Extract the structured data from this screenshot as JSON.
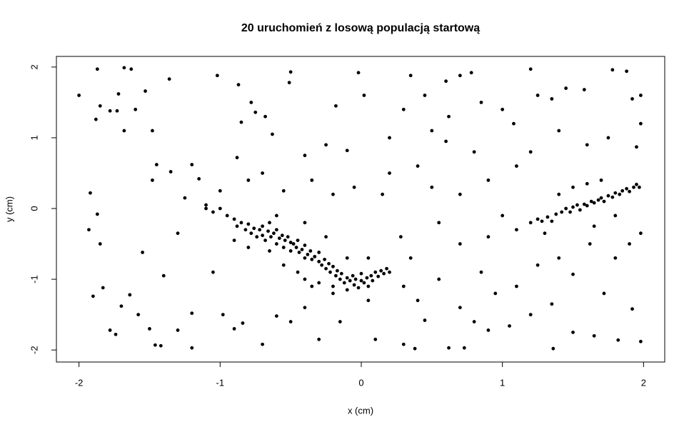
{
  "chart_data": {
    "type": "scatter",
    "title": "20 uruchomień z losową populacją startową",
    "xlabel": "x (cm)",
    "ylabel": "y (cm)",
    "color": "#000000",
    "xlim": [
      -2.16,
      2.15
    ],
    "ylim": [
      -2.17,
      2.15
    ],
    "xticks": [
      -2,
      -1,
      0,
      1,
      2
    ],
    "yticks": [
      -2,
      -1,
      0,
      1,
      2
    ],
    "x": [
      -2.0,
      -1.87,
      -1.85,
      -1.88,
      -1.78,
      -1.73,
      -1.72,
      -1.68,
      -1.63,
      -1.68,
      -1.6,
      -1.53,
      -1.48,
      -1.36,
      -1.92,
      -1.87,
      -1.93,
      -1.85,
      -1.9,
      -1.83,
      -1.78,
      -1.74,
      -1.7,
      -1.64,
      -1.58,
      -1.5,
      -1.46,
      -1.42,
      -1.3,
      -1.2,
      -1.45,
      -1.48,
      -1.35,
      -1.2,
      -1.25,
      -1.15,
      -1.3,
      -1.55,
      -1.4,
      -1.2,
      -1.02,
      -0.87,
      -0.78,
      -0.75,
      -0.68,
      -0.5,
      -0.51,
      -0.63,
      -0.85,
      -0.88,
      -0.4,
      -0.25,
      -0.18,
      -0.02,
      0.02,
      -0.1,
      -1.05,
      -0.98,
      -0.9,
      -0.84,
      -0.7,
      -0.6,
      -0.5,
      -0.4,
      -0.3,
      -0.15,
      0.05,
      0.1,
      0.3,
      0.38,
      0.45,
      0.62,
      0.73,
      0.8,
      0.9,
      1.05,
      1.2,
      1.36,
      1.5,
      1.65,
      1.82,
      1.98,
      1.92,
      1.72,
      1.5,
      1.35,
      1.1,
      0.95,
      0.85,
      0.7,
      0.55,
      0.4,
      0.35,
      0.3,
      0.28,
      0.4,
      0.3,
      0.35,
      0.45,
      0.6,
      0.7,
      0.78,
      0.62,
      0.85,
      1.0,
      1.08,
      1.2,
      1.25,
      1.35,
      1.45,
      1.58,
      1.78,
      1.88,
      1.92,
      1.98,
      1.98,
      1.95,
      1.75,
      1.6,
      1.4,
      1.2,
      1.1,
      0.9,
      0.7,
      0.5,
      0.55,
      0.7,
      0.9,
      1.0,
      1.1,
      0.8,
      0.6,
      0.5,
      0.2,
      0.15,
      0.2,
      -0.05,
      -0.2,
      -0.35,
      -0.55,
      -0.7,
      -0.8,
      -1.0,
      -1.1,
      1.98,
      1.9,
      1.8,
      1.62,
      1.4,
      1.25,
      -1.1,
      -1.05,
      -1.0,
      -0.95,
      -0.9,
      -0.88,
      -0.85,
      -0.82,
      -0.8,
      -0.78,
      -0.76,
      -0.74,
      -0.72,
      -0.7,
      -0.7,
      -0.68,
      -0.66,
      -0.65,
      -0.64,
      -0.62,
      -0.6,
      -0.6,
      -0.58,
      -0.56,
      -0.55,
      -0.54,
      -0.52,
      -0.5,
      -0.5,
      -0.48,
      -0.46,
      -0.45,
      -0.44,
      -0.42,
      -0.4,
      -0.4,
      -0.38,
      -0.36,
      -0.35,
      -0.33,
      -0.3,
      -0.3,
      -0.28,
      -0.26,
      -0.25,
      -0.23,
      -0.22,
      -0.2,
      -0.2,
      -0.18,
      -0.17,
      -0.15,
      -0.14,
      -0.12,
      -0.1,
      -0.1,
      -0.08,
      -0.06,
      -0.05,
      -0.04,
      -0.02,
      0.0,
      0.0,
      0.02,
      0.04,
      0.05,
      0.07,
      0.08,
      0.1,
      0.12,
      0.14,
      0.16,
      0.18,
      0.2,
      -0.3,
      -0.35,
      -0.45,
      -0.55,
      -0.65,
      -0.8,
      -0.9,
      -0.6,
      -0.4,
      -0.25,
      -0.1,
      0.05,
      -0.2,
      -0.4,
      1.2,
      1.25,
      1.28,
      1.32,
      1.35,
      1.38,
      1.42,
      1.45,
      1.48,
      1.5,
      1.53,
      1.55,
      1.58,
      1.6,
      1.63,
      1.65,
      1.68,
      1.7,
      1.72,
      1.75,
      1.78,
      1.8,
      1.83,
      1.85,
      1.88,
      1.9,
      1.93,
      1.95,
      1.97,
      1.6,
      1.7,
      1.5,
      1.8,
      1.4,
      1.3,
      1.65
    ],
    "y": [
      1.6,
      1.97,
      1.45,
      1.26,
      1.38,
      1.38,
      1.62,
      1.99,
      1.97,
      1.1,
      1.4,
      1.66,
      1.1,
      1.83,
      0.22,
      -0.08,
      -0.3,
      -0.5,
      -1.24,
      -1.12,
      -1.72,
      -1.78,
      -1.38,
      -1.22,
      -1.5,
      -1.7,
      -1.93,
      -1.94,
      -1.72,
      -1.97,
      0.62,
      0.4,
      0.52,
      0.62,
      0.15,
      0.42,
      -0.35,
      -0.62,
      -0.95,
      -1.48,
      1.88,
      1.75,
      1.5,
      1.36,
      1.3,
      1.93,
      1.78,
      1.05,
      1.22,
      0.72,
      0.75,
      0.9,
      1.45,
      1.92,
      1.6,
      0.82,
      -0.9,
      -1.5,
      -1.7,
      -1.62,
      -1.92,
      -1.52,
      -1.6,
      -1.4,
      -1.85,
      -1.6,
      -1.3,
      -1.85,
      -1.92,
      -1.98,
      -1.58,
      -1.97,
      -1.97,
      -1.6,
      -1.72,
      -1.66,
      -1.5,
      -1.98,
      -1.75,
      -1.8,
      -1.86,
      -1.88,
      -1.42,
      -1.2,
      -0.93,
      -1.35,
      -1.1,
      -1.2,
      -0.9,
      -1.4,
      -1.0,
      -1.3,
      -0.7,
      -1.1,
      -0.4,
      0.6,
      1.4,
      1.88,
      1.6,
      1.8,
      1.88,
      1.92,
      1.3,
      1.5,
      1.4,
      1.2,
      1.97,
      1.6,
      1.55,
      1.7,
      1.68,
      1.96,
      1.94,
      1.55,
      1.6,
      1.2,
      0.87,
      1.0,
      0.9,
      1.1,
      0.8,
      0.6,
      0.4,
      0.2,
      0.3,
      -0.2,
      -0.5,
      -0.4,
      -0.1,
      -0.3,
      0.8,
      0.95,
      1.1,
      1.0,
      0.2,
      0.5,
      0.3,
      0.2,
      0.4,
      0.25,
      0.5,
      0.4,
      0.25,
      0.05,
      -0.35,
      -0.5,
      -0.7,
      -0.5,
      -0.7,
      -0.8,
      0.0,
      -0.05,
      0.0,
      -0.1,
      -0.15,
      -0.25,
      -0.2,
      -0.3,
      -0.22,
      -0.35,
      -0.28,
      -0.4,
      -0.3,
      -0.25,
      -0.38,
      -0.45,
      -0.32,
      -0.2,
      -0.4,
      -0.35,
      -0.5,
      -0.3,
      -0.42,
      -0.38,
      -0.55,
      -0.45,
      -0.4,
      -0.48,
      -0.6,
      -0.5,
      -0.55,
      -0.45,
      -0.62,
      -0.58,
      -0.52,
      -0.7,
      -0.65,
      -0.6,
      -0.72,
      -0.68,
      -0.75,
      -0.62,
      -0.8,
      -0.72,
      -0.85,
      -0.78,
      -0.9,
      -0.82,
      -1.1,
      -0.95,
      -0.88,
      -1.0,
      -0.92,
      -1.05,
      -0.98,
      -1.15,
      -1.02,
      -0.95,
      -1.08,
      -1.0,
      -1.12,
      -1.02,
      -0.92,
      -1.05,
      -0.98,
      -1.1,
      -0.95,
      -1.02,
      -0.9,
      -0.96,
      -0.88,
      -0.92,
      -0.85,
      -0.9,
      -1.05,
      -1.1,
      -0.9,
      -0.8,
      -0.6,
      -0.55,
      -0.45,
      -0.1,
      -0.2,
      -0.4,
      -0.7,
      -0.7,
      -1.2,
      -1.0,
      -0.2,
      -0.15,
      -0.18,
      -0.12,
      -0.18,
      -0.08,
      -0.05,
      0.0,
      -0.05,
      0.02,
      0.05,
      -0.02,
      0.06,
      0.04,
      0.1,
      0.08,
      0.12,
      0.15,
      0.1,
      0.18,
      0.16,
      0.22,
      0.2,
      0.25,
      0.28,
      0.24,
      0.3,
      0.34,
      0.3,
      0.35,
      0.4,
      0.3,
      -0.1,
      0.2,
      -0.35,
      -0.25
    ]
  }
}
